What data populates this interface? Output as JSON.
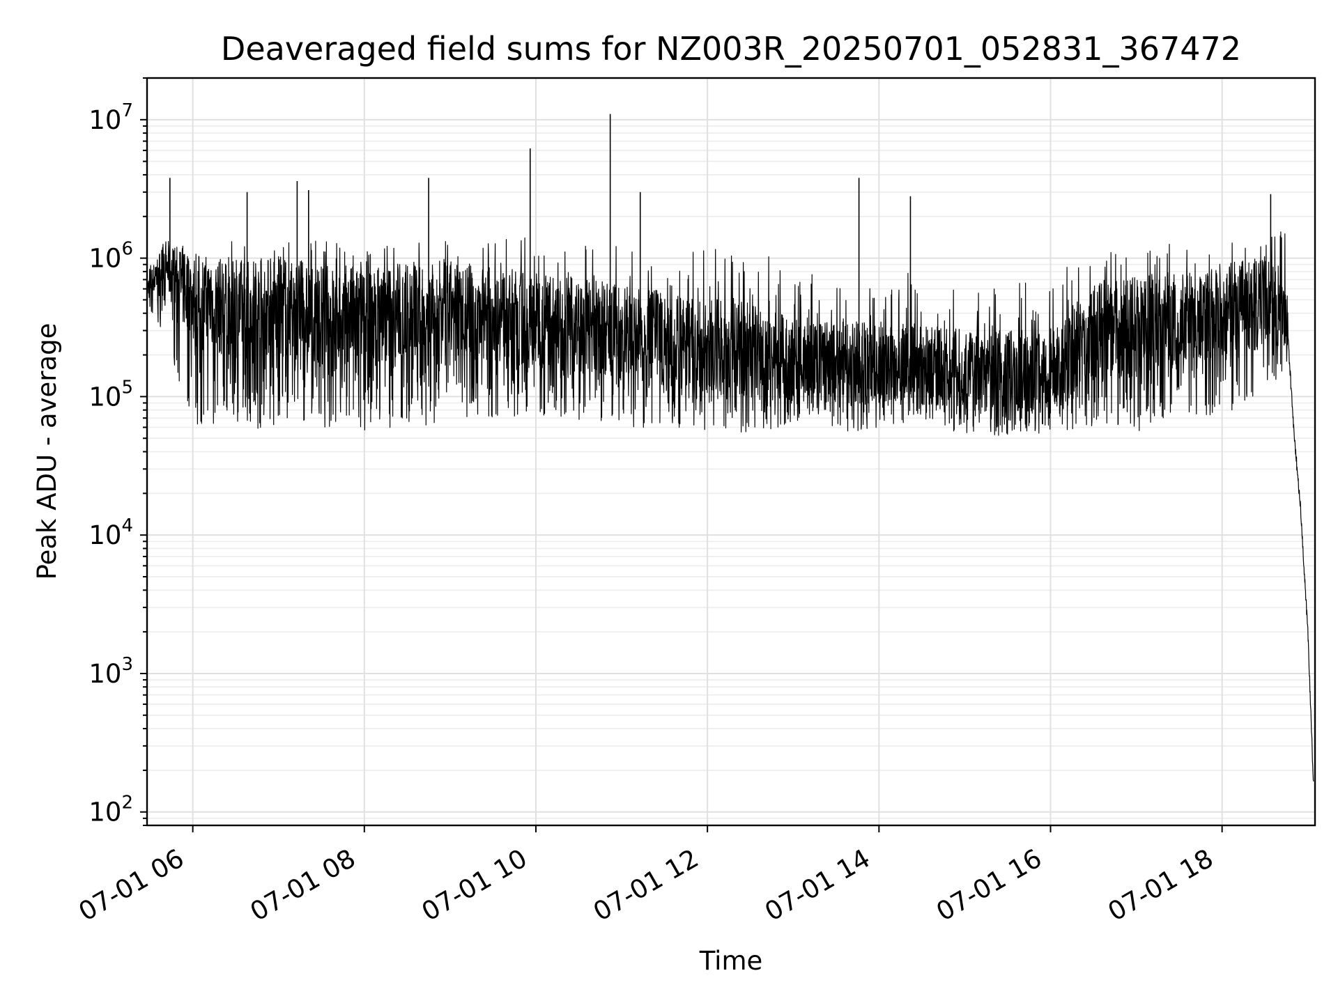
{
  "chart_data": {
    "type": "line",
    "title": "Deaveraged field sums for NZ003R_20250701_052831_367472",
    "xlabel": "Time",
    "ylabel": "Peak ADU - average",
    "yscale": "log",
    "ylim": [
      80,
      20000000
    ],
    "xlim": [
      "2025-07-01 05:28",
      "2025-07-01 19:05"
    ],
    "grid": true,
    "x_ticks": [
      {
        "label": "07-01 06",
        "t": "2025-07-01 06:00"
      },
      {
        "label": "07-01 08",
        "t": "2025-07-01 08:00"
      },
      {
        "label": "07-01 10",
        "t": "2025-07-01 10:00"
      },
      {
        "label": "07-01 12",
        "t": "2025-07-01 12:00"
      },
      {
        "label": "07-01 14",
        "t": "2025-07-01 14:00"
      },
      {
        "label": "07-01 16",
        "t": "2025-07-01 16:00"
      },
      {
        "label": "07-01 18",
        "t": "2025-07-01 18:00"
      }
    ],
    "y_ticks": [
      {
        "base": "10",
        "exp": "2",
        "value": 100
      },
      {
        "base": "10",
        "exp": "3",
        "value": 1000
      },
      {
        "base": "10",
        "exp": "4",
        "value": 10000
      },
      {
        "base": "10",
        "exp": "5",
        "value": 100000
      },
      {
        "base": "10",
        "exp": "6",
        "value": 1000000
      },
      {
        "base": "10",
        "exp": "7",
        "value": 10000000
      }
    ],
    "series": [
      {
        "color": "#000000",
        "x": [
          "2025-07-01 05:28",
          "2025-07-01 05:40",
          "2025-07-01 06:00",
          "2025-07-01 06:30",
          "2025-07-01 07:00",
          "2025-07-01 07:30",
          "2025-07-01 08:00",
          "2025-07-01 08:30",
          "2025-07-01 09:00",
          "2025-07-01 09:30",
          "2025-07-01 10:00",
          "2025-07-01 10:30",
          "2025-07-01 11:00",
          "2025-07-01 11:30",
          "2025-07-01 12:00",
          "2025-07-01 12:30",
          "2025-07-01 13:00",
          "2025-07-01 13:30",
          "2025-07-01 14:00",
          "2025-07-01 14:30",
          "2025-07-01 15:00",
          "2025-07-01 15:30",
          "2025-07-01 16:00",
          "2025-07-01 16:30",
          "2025-07-01 17:00",
          "2025-07-01 17:30",
          "2025-07-01 18:00",
          "2025-07-01 18:30",
          "2025-07-01 18:45",
          "2025-07-01 18:50",
          "2025-07-01 18:55",
          "2025-07-01 19:00",
          "2025-07-01 19:04"
        ],
        "y_typical": [
          600000,
          900000,
          500000,
          420000,
          450000,
          400000,
          380000,
          420000,
          430000,
          400000,
          360000,
          330000,
          300000,
          260000,
          230000,
          220000,
          180000,
          170000,
          180000,
          170000,
          160000,
          150000,
          160000,
          300000,
          320000,
          380000,
          420000,
          500000,
          400000,
          60000,
          15000,
          2000,
          150
        ],
        "y_low": [
          400000,
          300000,
          60000,
          60000,
          55000,
          60000,
          55000,
          60000,
          65000,
          70000,
          70000,
          65000,
          60000,
          58000,
          55000,
          55000,
          60000,
          55000,
          58000,
          60000,
          55000,
          50000,
          55000,
          60000,
          55000,
          70000,
          75000,
          100000,
          150000,
          40000,
          8000,
          500,
          140
        ],
        "y_high": [
          800000,
          1300000,
          1100000,
          1200000,
          1200000,
          1200000,
          1200000,
          1200000,
          1200000,
          1200000,
          1300000,
          1100000,
          1100000,
          1000000,
          1000000,
          1000000,
          800000,
          750000,
          750000,
          700000,
          600000,
          600000,
          650000,
          1000000,
          1100000,
          1200000,
          1200000,
          1500000,
          1400000,
          90000,
          30000,
          5000,
          300
        ],
        "spikes": [
          {
            "t": "2025-07-01 05:44",
            "y": 3800000
          },
          {
            "t": "2025-07-01 06:38",
            "y": 3000000
          },
          {
            "t": "2025-07-01 07:13",
            "y": 3600000
          },
          {
            "t": "2025-07-01 07:21",
            "y": 3100000
          },
          {
            "t": "2025-07-01 08:45",
            "y": 3800000
          },
          {
            "t": "2025-07-01 09:56",
            "y": 6200000
          },
          {
            "t": "2025-07-01 10:52",
            "y": 11000000
          },
          {
            "t": "2025-07-01 11:13",
            "y": 3000000
          },
          {
            "t": "2025-07-01 13:46",
            "y": 3800000
          },
          {
            "t": "2025-07-01 14:22",
            "y": 2800000
          },
          {
            "t": "2025-07-01 18:34",
            "y": 2900000
          }
        ]
      }
    ]
  }
}
